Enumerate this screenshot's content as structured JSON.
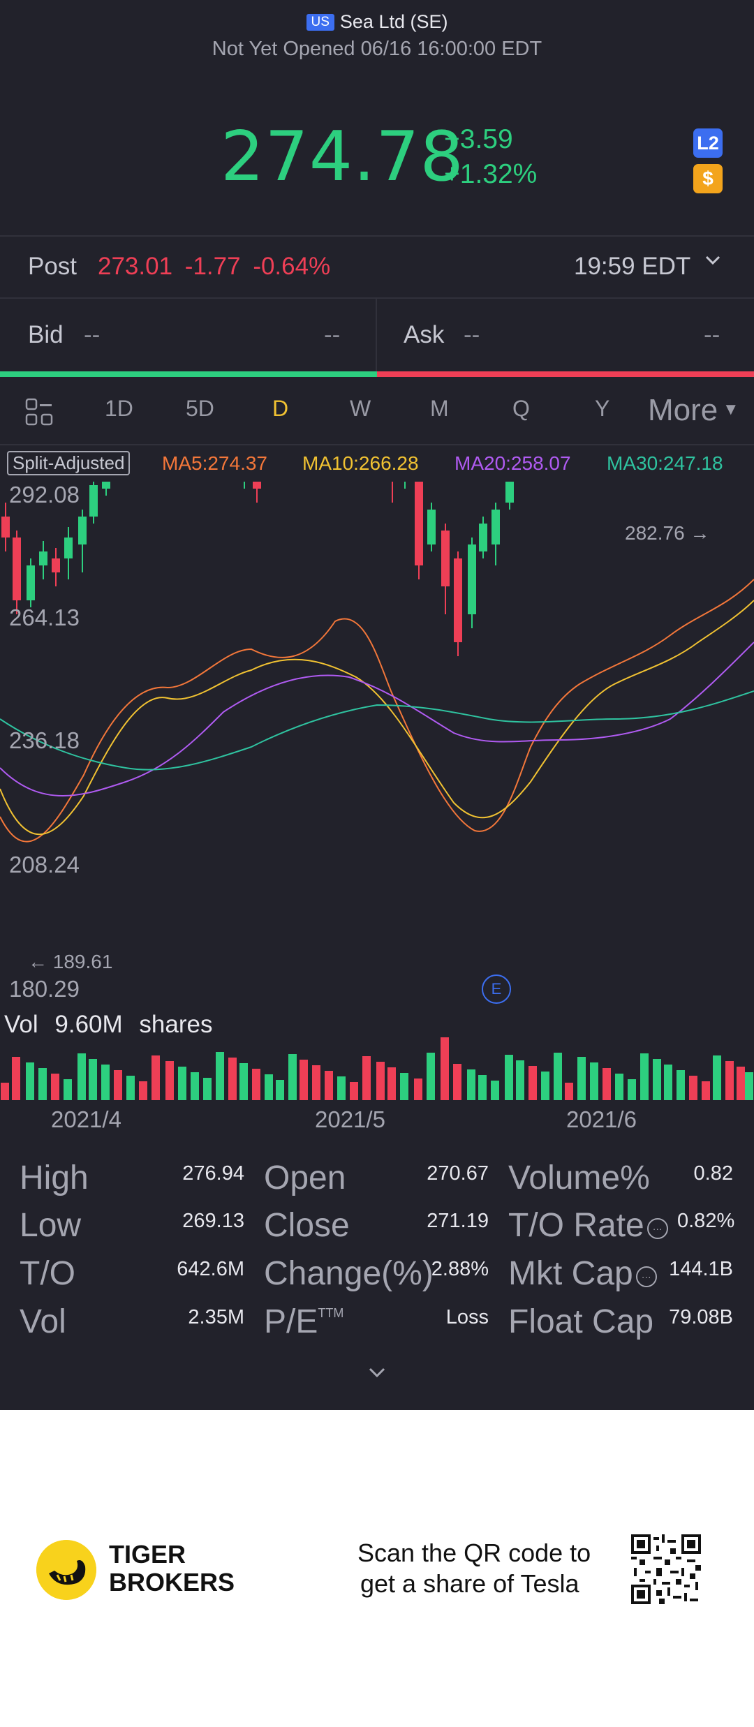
{
  "header": {
    "market_badge": "US",
    "title": "Sea Ltd (SE)",
    "status": "Not Yet Opened 06/16 16:00:00 EDT"
  },
  "quote": {
    "price": "274.78",
    "change": "+3.59",
    "change_pct": "+1.32%",
    "badge_l2": "L2",
    "badge_dollar": "$",
    "color_up": "#2dcf7f",
    "color_down": "#ef3f56"
  },
  "post": {
    "label": "Post",
    "price": "273.01",
    "change": "-1.77",
    "change_pct": "-0.64%",
    "time": "19:59 EDT"
  },
  "bidask": {
    "bid_label": "Bid",
    "bid_price": "--",
    "bid_size": "--",
    "ask_label": "Ask",
    "ask_price": "--",
    "ask_size": "--"
  },
  "tabs": [
    "1D",
    "5D",
    "D",
    "W",
    "M",
    "Q",
    "Y"
  ],
  "active_tab": "D",
  "more_label": "More",
  "indicators": {
    "split": "Split-Adjusted",
    "ma5": "MA5:274.37",
    "ma10": "MA10:266.28",
    "ma20": "MA20:258.07",
    "ma30": "MA30:247.18"
  },
  "chart_data": {
    "type": "candlestick",
    "y_ticks": [
      "292.08",
      "264.13",
      "236.18",
      "208.24",
      "180.29"
    ],
    "ylim": [
      180.29,
      292.08
    ],
    "x_ticks": [
      "2021/4",
      "2021/5",
      "2021/6"
    ],
    "high_marker": "282.76",
    "low_marker": "189.61",
    "earnings_marker": "E",
    "volume_label": "Vol",
    "volume_value": "9.60M shares",
    "series_colors": {
      "MA5": "#f3773a",
      "MA10": "#f1c232",
      "MA20": "#b05bf2",
      "MA30": "#2fc3a0"
    }
  },
  "stats": [
    {
      "label": "High",
      "value": "276.94"
    },
    {
      "label": "Low",
      "value": "269.13"
    },
    {
      "label": "T/O",
      "value": "642.6M"
    },
    {
      "label": "Vol",
      "value": "2.35M"
    },
    {
      "label": "Open",
      "value": "270.67"
    },
    {
      "label": "Close",
      "value": "271.19"
    },
    {
      "label": "Change(%)",
      "value": "2.88%"
    },
    {
      "label": "P/E",
      "sup": "TTM",
      "value": "Loss"
    },
    {
      "label": "Volume%",
      "value": "0.82"
    },
    {
      "label": "T/O Rate",
      "value": "0.82%"
    },
    {
      "label": "Mkt Cap",
      "value": "144.1B"
    },
    {
      "label": "Float Cap",
      "value": "79.08B"
    }
  ],
  "footer": {
    "brand_line1": "TIGER",
    "brand_line2": "BROKERS",
    "promo_line1": "Scan the QR code to",
    "promo_line2": "get a share of Tesla"
  }
}
